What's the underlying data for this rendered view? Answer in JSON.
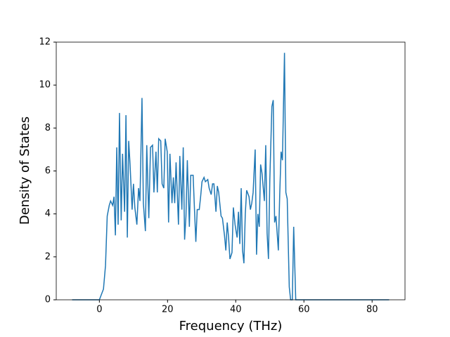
{
  "chart_data": {
    "type": "line",
    "x_label": "Frequency (THz)",
    "y_label": "Density of States",
    "xlim": [
      -12.65,
      89.65
    ],
    "xticks": [
      0,
      20,
      40,
      60,
      80
    ],
    "ylim": [
      0,
      12
    ],
    "yticks": [
      0,
      2,
      4,
      6,
      8,
      10,
      12
    ],
    "series": [
      {
        "color": "#1f77b4",
        "x": [
          -8,
          0,
          1.2,
          1.8,
          2.3,
          2.9,
          3.3,
          3.9,
          4.3,
          4.7,
          5.1,
          5.5,
          5.9,
          6.4,
          6.8,
          7.4,
          7.8,
          8.2,
          8.6,
          9.0,
          9.6,
          10,
          10.4,
          11,
          11.5,
          11.9,
          12.5,
          12.9,
          13.5,
          13.9,
          14.5,
          15,
          15.6,
          16,
          16.6,
          17,
          17.4,
          18,
          18.4,
          18.9,
          19.3,
          19.9,
          20.3,
          20.7,
          21.3,
          21.7,
          22.1,
          22.5,
          23.2,
          23.6,
          24.2,
          24.6,
          25,
          25.4,
          25.8,
          26.4,
          26.8,
          27.5,
          27.9,
          28.3,
          28.7,
          29.3,
          29.7,
          30.1,
          30.7,
          31.1,
          31.8,
          32.2,
          32.8,
          33.2,
          33.6,
          34.2,
          34.6,
          35,
          35.7,
          36.1,
          36.7,
          37.1,
          37.5,
          37.9,
          38.3,
          38.9,
          39.3,
          39.8,
          40.4,
          40.8,
          41.2,
          41.6,
          42,
          42.4,
          42.8,
          43.2,
          43.9,
          44.3,
          44.7,
          45.1,
          45.7,
          46.1,
          46.5,
          46.9,
          47.3,
          47.7,
          48.4,
          48.8,
          49.2,
          49.6,
          50,
          50.6,
          51,
          51.4,
          51.8,
          52.5,
          52.9,
          53.3,
          53.7,
          54.3,
          54.7,
          55.1,
          55.7,
          56.1,
          56.6,
          57,
          57.6,
          58,
          85
        ],
        "values": [
          0,
          0,
          0.5,
          1.6,
          3.9,
          4.4,
          4.6,
          4.4,
          4.8,
          3.0,
          7.1,
          3.5,
          8.7,
          3.7,
          6.8,
          4.1,
          8.6,
          2.9,
          7.4,
          6.3,
          4.2,
          5.4,
          4.3,
          3.5,
          5.2,
          4.6,
          9.4,
          4.5,
          3.2,
          7.2,
          3.8,
          7.1,
          7.2,
          5.0,
          6.9,
          5.0,
          7.5,
          7.4,
          5.4,
          5.2,
          7.5,
          6.9,
          3.6,
          6.8,
          4.5,
          5.7,
          4.5,
          6.4,
          3.5,
          6.7,
          4.2,
          7.1,
          2.8,
          3.9,
          6.5,
          3.4,
          5.8,
          5.8,
          4.2,
          2.7,
          4.2,
          4.2,
          4.8,
          5.5,
          5.7,
          5.5,
          5.6,
          5.2,
          4.9,
          5.4,
          5.4,
          4.1,
          5.3,
          5.0,
          3.9,
          3.8,
          3.0,
          2.3,
          3.6,
          2.9,
          1.9,
          2.2,
          4.3,
          3.5,
          2.9,
          4.1,
          2.6,
          5.2,
          2.3,
          1.7,
          4.0,
          5.1,
          4.8,
          4.2,
          4.5,
          5.0,
          7.0,
          2.1,
          4.0,
          3.4,
          6.3,
          5.9,
          4.6,
          7.2,
          3.1,
          1.9,
          5.6,
          9.0,
          9.3,
          3.6,
          3.9,
          2.3,
          4.9,
          6.9,
          6.5,
          11.5,
          5.0,
          4.7,
          0.6,
          0,
          0,
          3.4,
          0,
          0,
          0
        ]
      }
    ]
  }
}
